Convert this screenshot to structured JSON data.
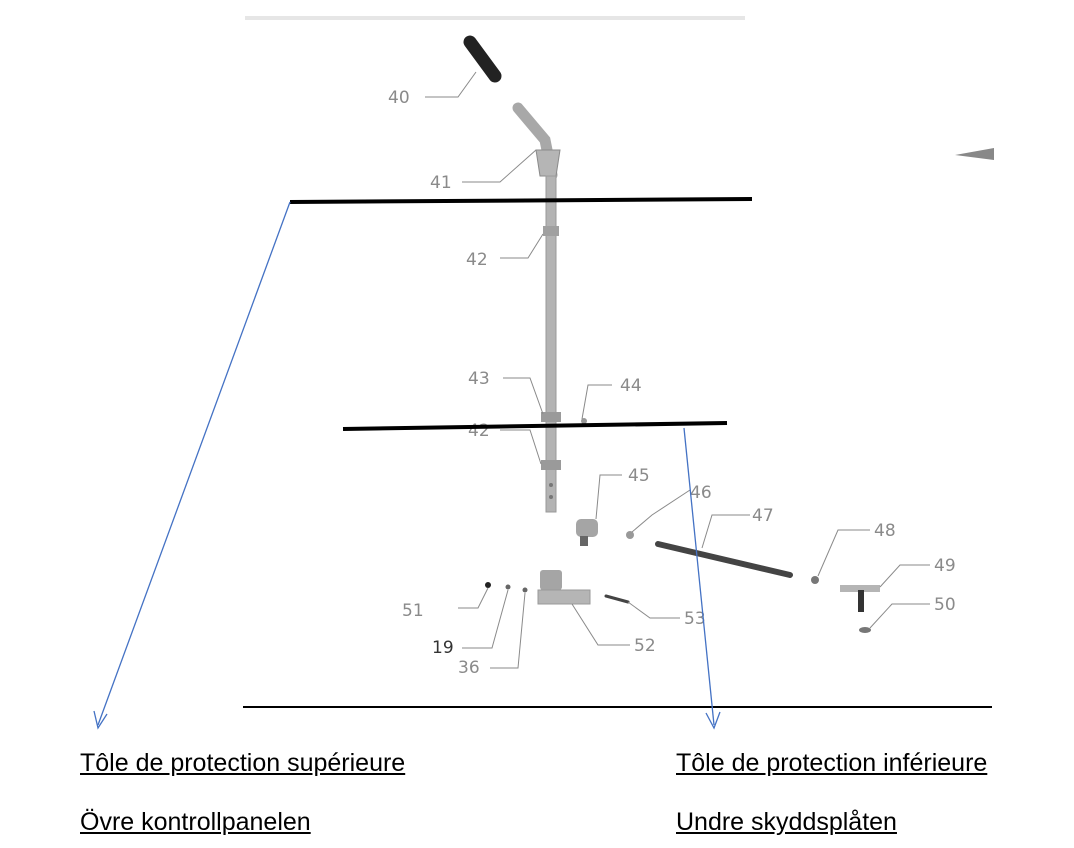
{
  "part_numbers": [
    "40",
    "41",
    "42",
    "43",
    "44",
    "42",
    "45",
    "46",
    "47",
    "48",
    "49",
    "50",
    "51",
    "19",
    "36",
    "52",
    "53"
  ],
  "captions": {
    "upper_french": "Tôle de protection supérieure",
    "upper_swedish": "Övre kontrollpanelen ",
    "lower_french": "Tôle de protection inférieure",
    "lower_swedish": "Undre skyddsplåten"
  },
  "colors": {
    "arrow": "#4472c4",
    "callout_line": "#000000",
    "part_gray": "#a0a0a0",
    "label_gray": "#8a8a8a"
  }
}
